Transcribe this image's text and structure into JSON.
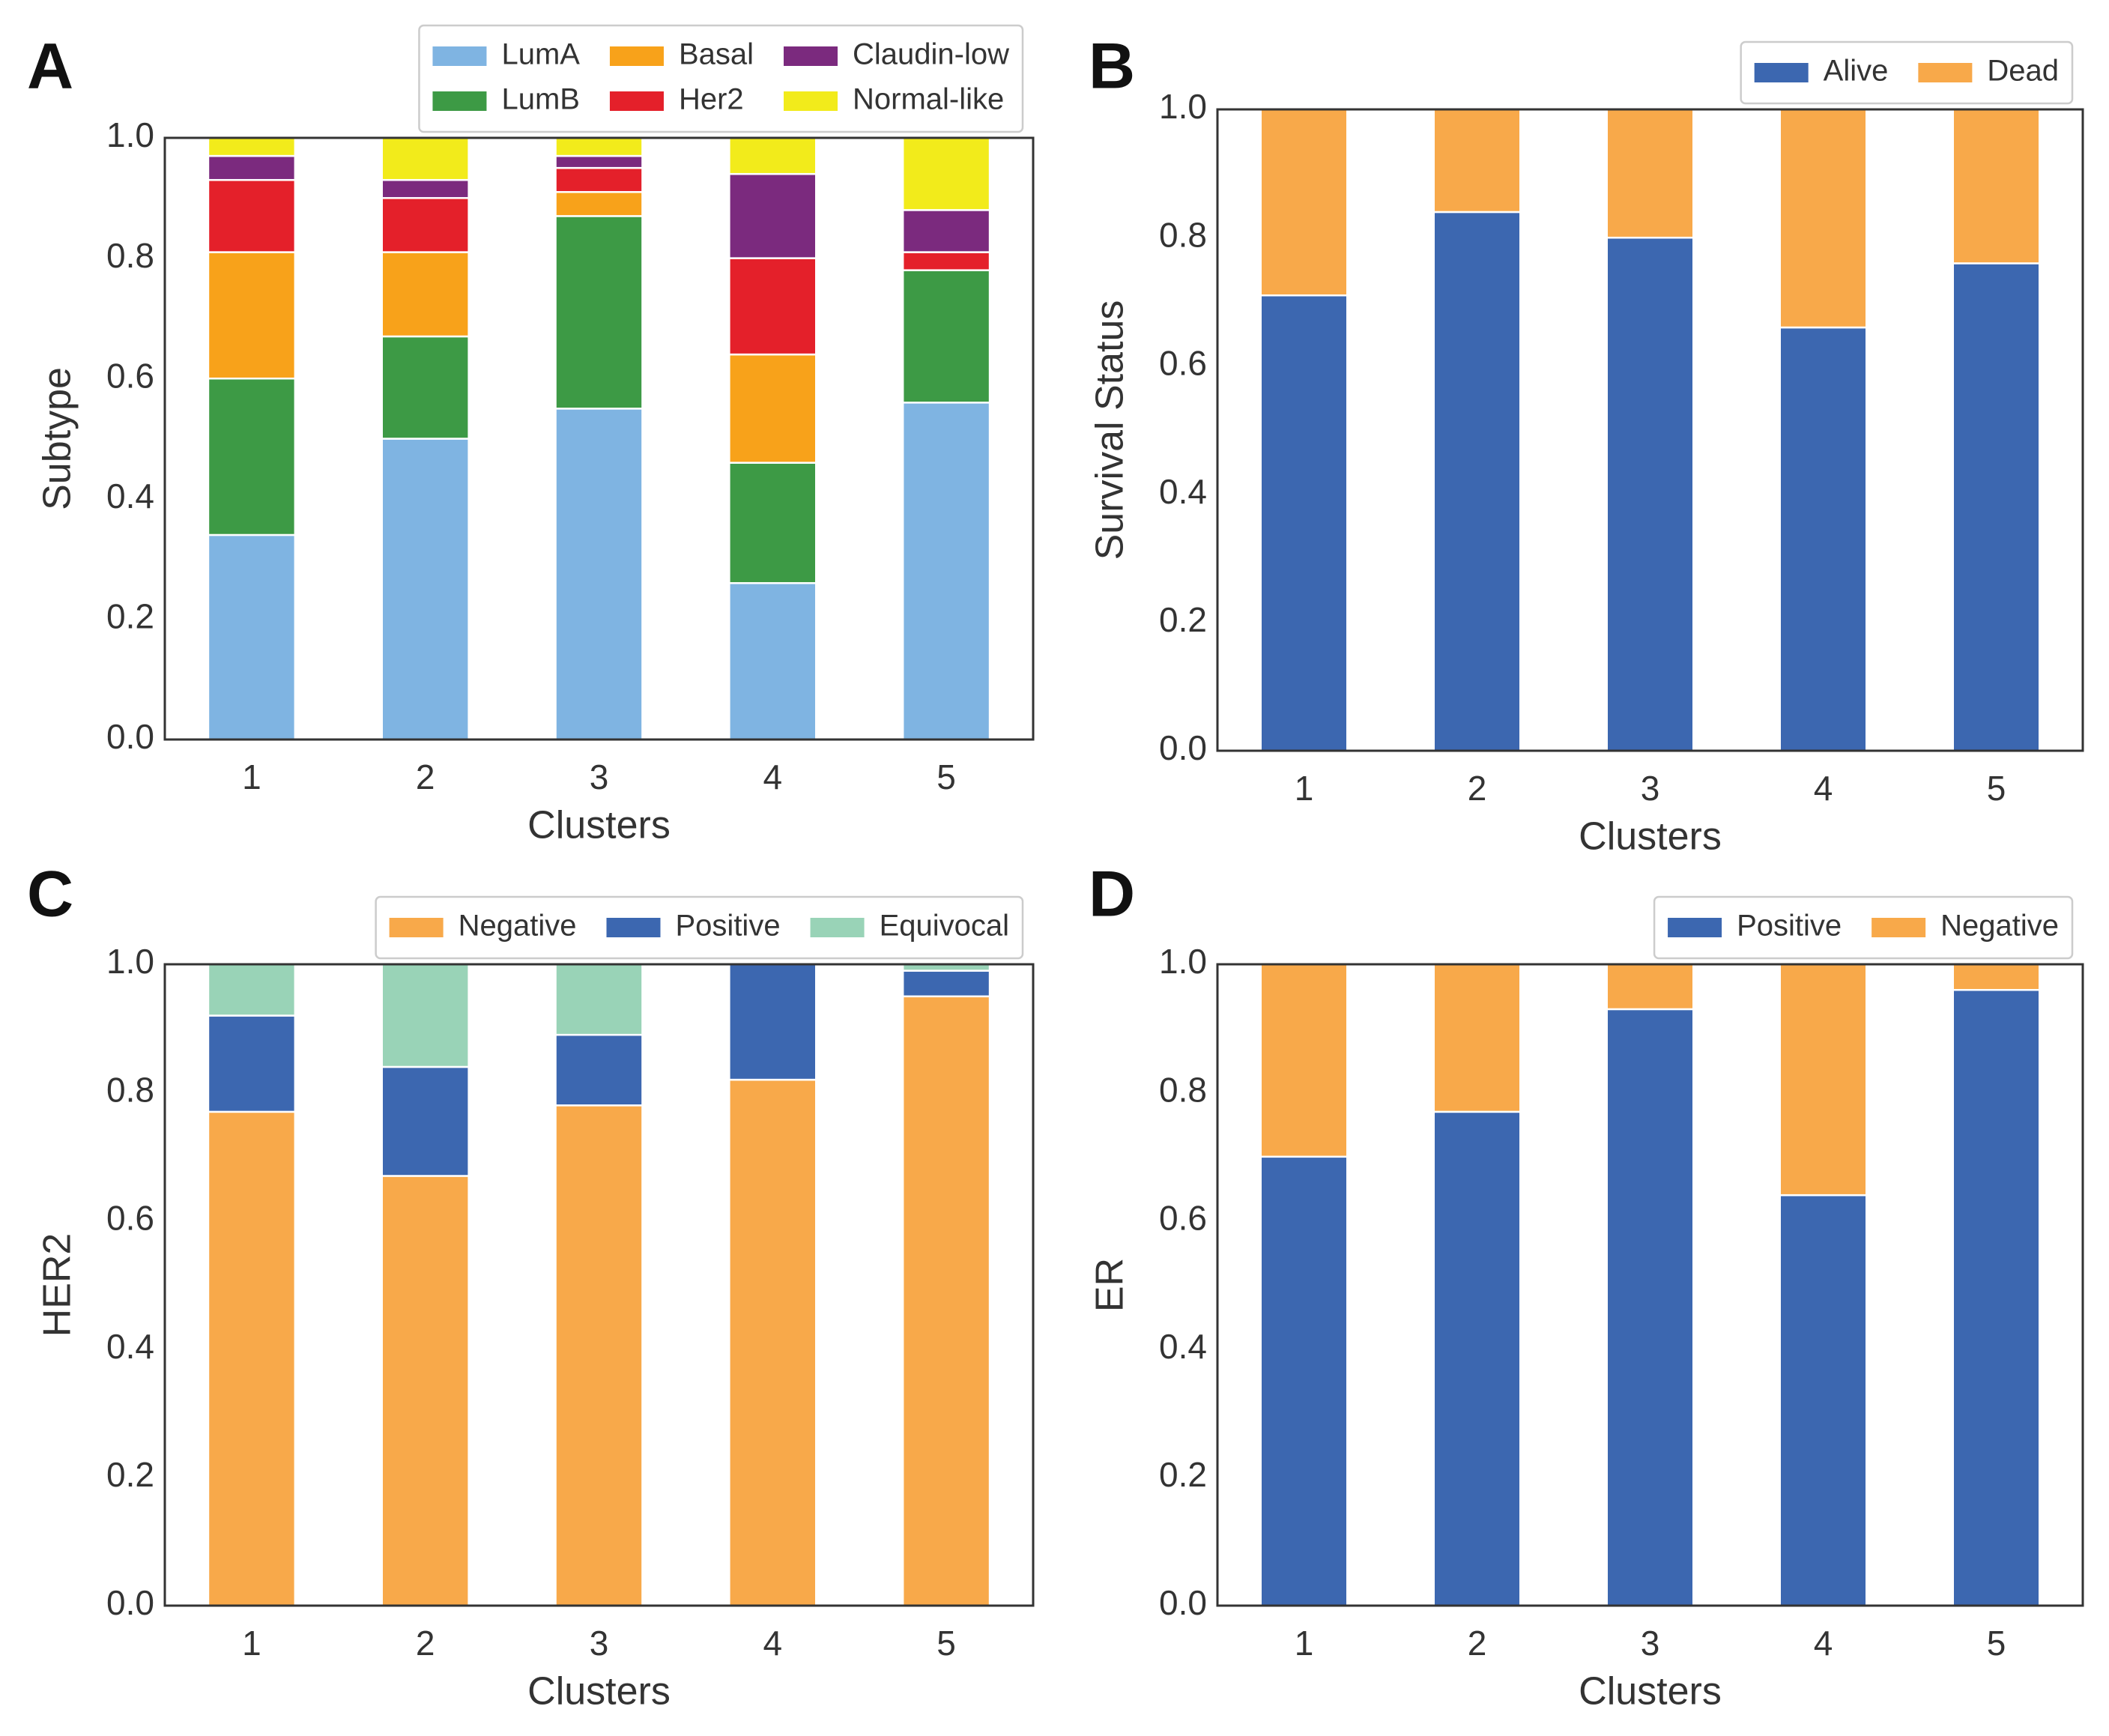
{
  "chart_data": [
    {
      "type": "bar",
      "stacked": true,
      "panel": "A",
      "xlabel": "Clusters",
      "ylabel": "Subtype",
      "categories": [
        "1",
        "2",
        "3",
        "4",
        "5"
      ],
      "series": [
        {
          "name": "LumA",
          "color": "#7fb4e2",
          "values": [
            0.34,
            0.5,
            0.55,
            0.26,
            0.56
          ]
        },
        {
          "name": "LumB",
          "color": "#3d9a45",
          "values": [
            0.26,
            0.17,
            0.32,
            0.2,
            0.22
          ]
        },
        {
          "name": "Basal",
          "color": "#f8a21a",
          "values": [
            0.21,
            0.14,
            0.04,
            0.18,
            0
          ]
        },
        {
          "name": "Her2",
          "color": "#e4202a",
          "values": [
            0.12,
            0.09,
            0.04,
            0.16,
            0.03
          ]
        },
        {
          "name": "Claudin-low",
          "color": "#7b2a7e",
          "values": [
            0.04,
            0.03,
            0.02,
            0.14,
            0.07
          ]
        },
        {
          "name": "Normal-like",
          "color": "#f2eb1b",
          "values": [
            0.03,
            0.07,
            0.03,
            0.06,
            0.12
          ]
        }
      ],
      "ylim": [
        0,
        1
      ],
      "yticks": [
        {
          "value": 0,
          "label": "0.0"
        },
        0.2,
        0.4,
        0.6,
        0.8,
        {
          "value": 1,
          "label": "1.0"
        }
      ],
      "grid": false,
      "legend": "upper right",
      "legend_ncol": 3
    },
    {
      "type": "bar",
      "stacked": true,
      "panel": "B",
      "xlabel": "Clusters",
      "ylabel": "Survival Status",
      "categories": [
        "1",
        "2",
        "3",
        "4",
        "5"
      ],
      "series": [
        {
          "name": "Alive",
          "color": "#3c67b0",
          "values": [
            0.71,
            0.84,
            0.8,
            0.66,
            0.76
          ]
        },
        {
          "name": "Dead",
          "color": "#f8a94a",
          "values": [
            0.29,
            0.16,
            0.2,
            0.34,
            0.24
          ]
        }
      ],
      "ylim": [
        0,
        1
      ],
      "yticks": [
        {
          "value": 0,
          "label": "0.0"
        },
        0.2,
        0.4,
        0.6,
        0.8,
        {
          "value": 1,
          "label": "1.0"
        }
      ],
      "grid": false,
      "legend": "upper right",
      "legend_ncol": 2
    },
    {
      "type": "bar",
      "stacked": true,
      "panel": "C",
      "xlabel": "Clusters",
      "ylabel": "HER2",
      "categories": [
        "1",
        "2",
        "3",
        "4",
        "5"
      ],
      "series": [
        {
          "name": "Negative",
          "color": "#f8a94a",
          "values": [
            0.77,
            0.67,
            0.78,
            0.82,
            0.95
          ]
        },
        {
          "name": "Positive",
          "color": "#3c67b0",
          "values": [
            0.15,
            0.17,
            0.11,
            0.18,
            0.04
          ]
        },
        {
          "name": "Equivocal",
          "color": "#99d3b7",
          "values": [
            0.08,
            0.16,
            0.11,
            0,
            0.01
          ]
        }
      ],
      "ylim": [
        0,
        1
      ],
      "yticks": [
        {
          "value": 0,
          "label": "0.0"
        },
        0.2,
        0.4,
        0.6,
        0.8,
        {
          "value": 1,
          "label": "1.0"
        }
      ],
      "grid": false,
      "legend": "upper right",
      "legend_ncol": 3
    },
    {
      "type": "bar",
      "stacked": true,
      "panel": "D",
      "xlabel": "Clusters",
      "ylabel": "ER",
      "categories": [
        "1",
        "2",
        "3",
        "4",
        "5"
      ],
      "series": [
        {
          "name": "Positive",
          "color": "#3c67b0",
          "values": [
            0.7,
            0.77,
            0.93,
            0.64,
            0.96
          ]
        },
        {
          "name": "Negative",
          "color": "#f8a94a",
          "values": [
            0.3,
            0.23,
            0.07,
            0.36,
            0.04
          ]
        }
      ],
      "ylim": [
        0,
        1
      ],
      "yticks": [
        {
          "value": 0,
          "label": "0.0"
        },
        0.2,
        0.4,
        0.6,
        0.8,
        {
          "value": 1,
          "label": "1.0"
        }
      ],
      "grid": false,
      "legend": "upper right",
      "legend_ncol": 2
    }
  ]
}
